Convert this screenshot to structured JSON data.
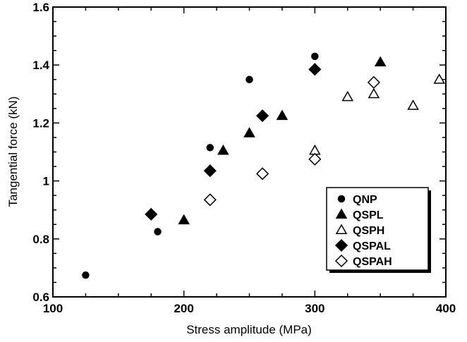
{
  "chart_data": {
    "type": "scatter",
    "xlabel": "Stress amplitude (MPa)",
    "ylabel": "Tangential force (kN)",
    "xlim": [
      100,
      400
    ],
    "ylim": [
      0.6,
      1.6
    ],
    "x_ticks": [
      "100",
      "200",
      "300",
      "400"
    ],
    "y_ticks": [
      "0.6",
      "0.8",
      "1",
      "1.2",
      "1.4",
      "1.6"
    ],
    "grid": false,
    "legend_position": "bottom-right",
    "series": [
      {
        "name": "QNP",
        "marker": "filled-circle",
        "points": [
          [
            125,
            0.675
          ],
          [
            180,
            0.825
          ],
          [
            220,
            1.115
          ],
          [
            250,
            1.35
          ],
          [
            300,
            1.43
          ]
        ]
      },
      {
        "name": "QSPL",
        "marker": "filled-triangle",
        "points": [
          [
            200,
            0.865
          ],
          [
            230,
            1.105
          ],
          [
            250,
            1.165
          ],
          [
            275,
            1.225
          ],
          [
            350,
            1.41
          ]
        ]
      },
      {
        "name": "QSPH",
        "marker": "open-triangle",
        "points": [
          [
            300,
            1.105
          ],
          [
            325,
            1.29
          ],
          [
            345,
            1.3
          ],
          [
            375,
            1.26
          ],
          [
            395,
            1.35
          ]
        ]
      },
      {
        "name": "QSPAL",
        "marker": "filled-diamond",
        "points": [
          [
            175,
            0.885
          ],
          [
            220,
            1.035
          ],
          [
            260,
            1.225
          ],
          [
            300,
            1.385
          ]
        ]
      },
      {
        "name": "QSPAH",
        "marker": "open-diamond",
        "points": [
          [
            220,
            0.935
          ],
          [
            260,
            1.025
          ],
          [
            300,
            1.075
          ],
          [
            345,
            1.34
          ]
        ]
      }
    ]
  }
}
